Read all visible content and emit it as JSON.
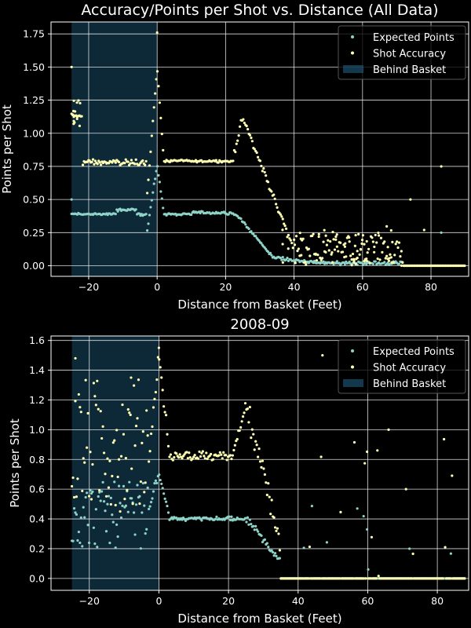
{
  "colors": {
    "background": "#000000",
    "expected_points": "#8dd3c7",
    "shot_accuracy": "#ffffb3",
    "behind_basket": "#1f5f82",
    "grid": "#ffffff",
    "axes": "#ffffff"
  },
  "chart_data": [
    {
      "type": "scatter",
      "title": "Accuracy/Points per Shot vs. Distance (All Data)",
      "xlabel": "Distance from Basket (Feet)",
      "ylabel": "Points per Shot",
      "xlim": [
        -31,
        91
      ],
      "ylim": [
        -0.08,
        1.84
      ],
      "xticks": [
        "−20",
        "0",
        "20",
        "40",
        "60",
        "80"
      ],
      "xtick_values": [
        -20,
        0,
        20,
        40,
        60,
        80
      ],
      "yticks": [
        "0.00",
        "0.25",
        "0.50",
        "0.75",
        "1.00",
        "1.25",
        "1.50",
        "1.75"
      ],
      "ytick_values": [
        0,
        0.25,
        0.5,
        0.75,
        1.0,
        1.25,
        1.5,
        1.75
      ],
      "grid": true,
      "legend_position": "top-right",
      "behind_basket_span": [
        -25,
        0
      ],
      "legend": [
        "Expected Points",
        "Shot Accuracy",
        "Behind Basket"
      ],
      "series_notes": {
        "expected_points": "≈0.38 behind basket, dip to 0.25 near -3 ft, peak 0.76 at 0 ft, plateau ≈0.39 from 2-22 ft, falls to ≈0.05 past 33 ft, 0 beyond 70 ft",
        "shot_accuracy": "≈0.78 behind basket, peak 1.50 at 0 ft, plateau ≈0.79 from 2-22 ft, second peak ≈1.12 at 24 ft, decays to ≈0.1 by 40 ft, sparse to 75 ft"
      }
    },
    {
      "type": "scatter",
      "title": "2008-09",
      "xlabel": "Distance from Basket (Feet)",
      "ylabel": "Points per Shot",
      "xlim": [
        -31,
        89
      ],
      "ylim": [
        -0.08,
        1.63
      ],
      "xticks": [
        "−20",
        "0",
        "20",
        "40",
        "60",
        "80"
      ],
      "xtick_values": [
        -20,
        0,
        20,
        40,
        60,
        80
      ],
      "yticks": [
        "0.0",
        "0.2",
        "0.4",
        "0.6",
        "0.8",
        "1.0",
        "1.2",
        "1.4",
        "1.6"
      ],
      "ytick_values": [
        0,
        0.2,
        0.4,
        0.6,
        0.8,
        1.0,
        1.2,
        1.4,
        1.6
      ],
      "grid": true,
      "legend_position": "top-right",
      "behind_basket_span": [
        -25,
        0
      ],
      "legend": [
        "Expected Points",
        "Shot Accuracy",
        "Behind Basket"
      ],
      "series_notes": {
        "expected_points": "scattered 0.2-0.7 behind basket, peak ≈0.7 at 0 ft, plateau ≈0.4 from 2-25 ft, falls toward 0.1 past 33 ft",
        "shot_accuracy": "scattered 0.5-1.4 behind basket, peak ≈1.55 at 0 ft, plateau ≈0.82 from 2-22 ft, peak ≈1.15 near 24 ft, mostly 0 beyond 35 ft"
      }
    }
  ]
}
